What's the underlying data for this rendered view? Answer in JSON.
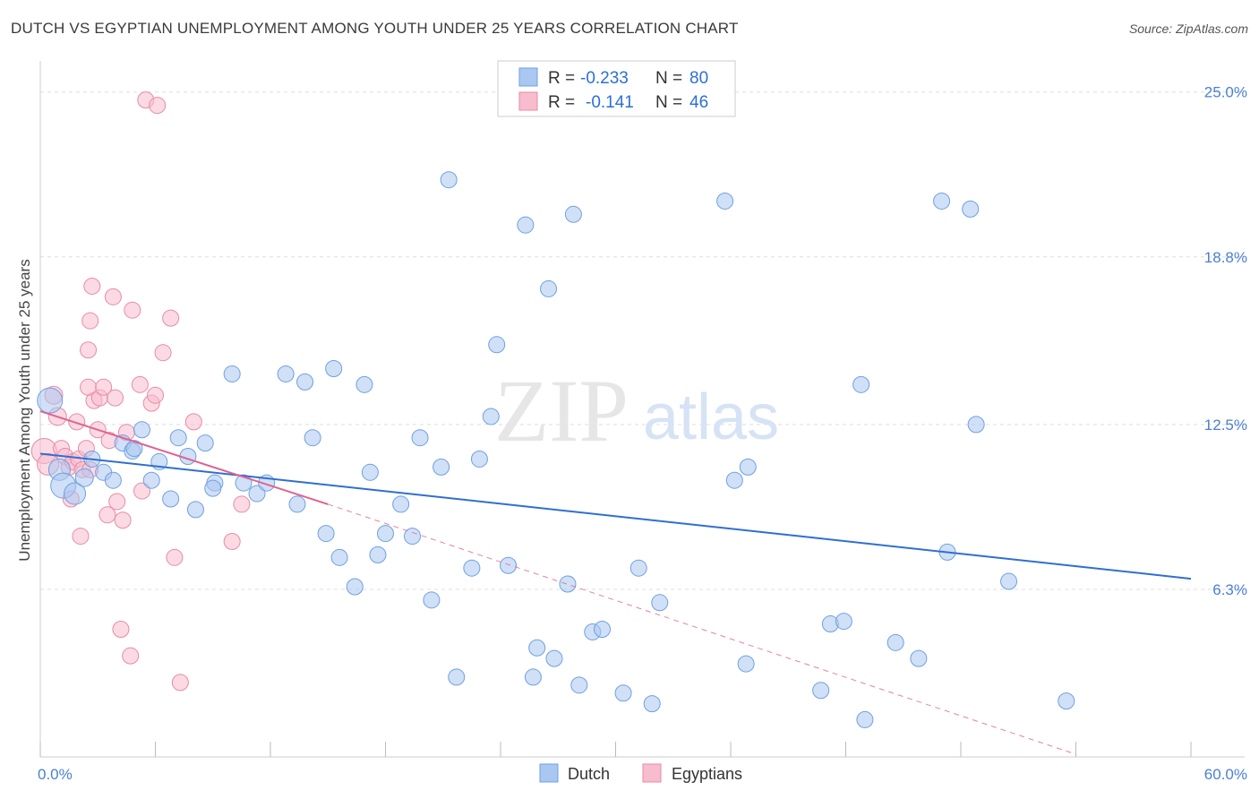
{
  "header": {
    "title": "DUTCH VS EGYPTIAN UNEMPLOYMENT AMONG YOUTH UNDER 25 YEARS CORRELATION CHART",
    "source": "Source: ZipAtlas.com"
  },
  "watermark": {
    "zip": "ZIP",
    "atlas": "atlas"
  },
  "colors": {
    "dutch_fill": "#a9c7f0",
    "dutch_stroke": "#6fa0e0",
    "dutch_line": "#2f6fd0",
    "egypt_fill": "#f7bccd",
    "egypt_stroke": "#e98aa8",
    "egypt_line": "#e0628f",
    "grid": "#dddddd",
    "axis_text": "#4a7fd4"
  },
  "legend": {
    "rows": [
      {
        "r_label": "R =",
        "r_value": "-0.233",
        "n_label": "N =",
        "n_value": "80"
      },
      {
        "r_label": "R =",
        "r_value": "-0.141",
        "n_label": "N =",
        "n_value": "46"
      }
    ]
  },
  "bottom_legend": {
    "dutch": "Dutch",
    "egyptians": "Egyptians"
  },
  "chart_data": {
    "type": "scatter",
    "title": "DUTCH VS EGYPTIAN UNEMPLOYMENT AMONG YOUTH UNDER 25 YEARS CORRELATION CHART",
    "xlabel": "",
    "ylabel": "Unemployment Among Youth under 25 years",
    "xlim": [
      0,
      60
    ],
    "ylim": [
      0,
      25.9
    ],
    "x_tick_labels": [
      "0.0%",
      "60.0%"
    ],
    "y_ticks": [
      6.3,
      12.5,
      18.8,
      25.0
    ],
    "y_tick_labels": [
      "6.3%",
      "12.5%",
      "18.8%",
      "25.0%"
    ],
    "grid": true,
    "legend_position": "top-center",
    "series": [
      {
        "name": "Dutch",
        "r": -0.233,
        "n": 80,
        "trend": {
          "x": [
            0,
            60
          ],
          "y": [
            11.4,
            6.7
          ]
        },
        "points": [
          [
            0.5,
            13.4,
            14
          ],
          [
            1.0,
            10.8,
            12
          ],
          [
            1.2,
            10.2,
            14
          ],
          [
            1.8,
            9.9,
            12
          ],
          [
            2.3,
            10.5,
            10
          ],
          [
            2.7,
            11.2,
            9
          ],
          [
            3.3,
            10.7,
            9
          ],
          [
            3.8,
            10.4,
            9
          ],
          [
            4.3,
            11.8,
            9
          ],
          [
            4.8,
            11.5,
            9
          ],
          [
            5.3,
            12.3,
            9
          ],
          [
            5.8,
            10.4,
            9
          ],
          [
            6.2,
            11.1,
            9
          ],
          [
            6.8,
            9.7,
            9
          ],
          [
            7.2,
            12.0,
            9
          ],
          [
            7.7,
            11.3,
            9
          ],
          [
            8.1,
            9.3,
            9
          ],
          [
            8.6,
            11.8,
            9
          ],
          [
            9.1,
            10.3,
            9
          ],
          [
            10.0,
            14.4,
            9
          ],
          [
            10.6,
            10.3,
            9
          ],
          [
            11.3,
            9.9,
            9
          ],
          [
            11.8,
            10.3,
            9
          ],
          [
            12.8,
            14.4,
            9
          ],
          [
            13.4,
            9.5,
            9
          ],
          [
            13.8,
            14.1,
            9
          ],
          [
            14.2,
            12.0,
            9
          ],
          [
            14.9,
            8.4,
            9
          ],
          [
            15.3,
            14.6,
            9
          ],
          [
            15.6,
            7.5,
            9
          ],
          [
            16.4,
            6.4,
            9
          ],
          [
            16.9,
            14.0,
            9
          ],
          [
            17.2,
            10.7,
            9
          ],
          [
            17.6,
            7.6,
            9
          ],
          [
            18.0,
            8.4,
            9
          ],
          [
            18.8,
            9.5,
            9
          ],
          [
            19.4,
            8.3,
            9
          ],
          [
            19.8,
            12.0,
            9
          ],
          [
            20.4,
            5.9,
            9
          ],
          [
            20.9,
            10.9,
            9
          ],
          [
            21.3,
            21.7,
            9
          ],
          [
            21.7,
            3.0,
            9
          ],
          [
            22.5,
            7.1,
            9
          ],
          [
            22.9,
            11.2,
            9
          ],
          [
            23.5,
            12.8,
            9
          ],
          [
            23.8,
            15.5,
            9
          ],
          [
            24.4,
            7.2,
            9
          ],
          [
            25.3,
            20.0,
            9
          ],
          [
            25.7,
            3.0,
            9
          ],
          [
            25.9,
            4.1,
            9
          ],
          [
            26.5,
            17.6,
            9
          ],
          [
            26.8,
            3.7,
            9
          ],
          [
            27.5,
            6.5,
            9
          ],
          [
            27.8,
            20.4,
            9
          ],
          [
            28.1,
            2.7,
            9
          ],
          [
            28.8,
            4.7,
            9
          ],
          [
            29.3,
            4.8,
            9
          ],
          [
            30.4,
            2.4,
            9
          ],
          [
            31.2,
            7.1,
            9
          ],
          [
            31.9,
            2.0,
            9
          ],
          [
            32.3,
            5.8,
            9
          ],
          [
            35.7,
            20.9,
            9
          ],
          [
            36.2,
            10.4,
            9
          ],
          [
            36.8,
            3.5,
            9
          ],
          [
            36.9,
            10.9,
            9
          ],
          [
            40.7,
            2.5,
            9
          ],
          [
            41.2,
            5.0,
            9
          ],
          [
            41.9,
            5.1,
            9
          ],
          [
            42.8,
            14.0,
            9
          ],
          [
            43.0,
            1.4,
            9
          ],
          [
            44.6,
            4.3,
            9
          ],
          [
            45.8,
            3.7,
            9
          ],
          [
            47.0,
            20.9,
            9
          ],
          [
            47.3,
            7.7,
            9
          ],
          [
            48.5,
            20.6,
            9
          ],
          [
            48.8,
            12.5,
            9
          ],
          [
            50.5,
            6.6,
            9
          ],
          [
            53.5,
            2.1,
            9
          ],
          [
            4.9,
            11.6,
            9
          ],
          [
            9.0,
            10.1,
            9
          ]
        ]
      },
      {
        "name": "Egyptians",
        "r": -0.141,
        "n": 46,
        "trend": {
          "x": [
            0,
            15
          ],
          "y": [
            13.0,
            9.5
          ]
        },
        "trend_dashed": {
          "x": [
            15,
            54
          ],
          "y": [
            9.5,
            0.1
          ]
        },
        "points": [
          [
            0.2,
            11.5,
            14
          ],
          [
            0.4,
            11.0,
            12
          ],
          [
            0.7,
            13.6,
            10
          ],
          [
            0.9,
            12.8,
            10
          ],
          [
            1.1,
            11.6,
            9
          ],
          [
            1.3,
            11.3,
            9
          ],
          [
            1.5,
            10.9,
            9
          ],
          [
            1.7,
            11.1,
            9
          ],
          [
            1.9,
            12.6,
            9
          ],
          [
            2.0,
            11.2,
            9
          ],
          [
            2.2,
            10.8,
            9
          ],
          [
            2.4,
            11.6,
            9
          ],
          [
            2.6,
            10.8,
            9
          ],
          [
            2.8,
            13.4,
            9
          ],
          [
            3.0,
            12.3,
            9
          ],
          [
            1.6,
            9.7,
            9
          ],
          [
            2.1,
            8.3,
            9
          ],
          [
            2.5,
            15.3,
            9
          ],
          [
            2.6,
            16.4,
            9
          ],
          [
            2.5,
            13.9,
            9
          ],
          [
            2.7,
            17.7,
            9
          ],
          [
            3.1,
            13.5,
            9
          ],
          [
            3.3,
            13.9,
            9
          ],
          [
            3.5,
            9.1,
            9
          ],
          [
            3.6,
            11.9,
            9
          ],
          [
            3.8,
            17.3,
            9
          ],
          [
            3.9,
            13.5,
            9
          ],
          [
            4.0,
            9.6,
            9
          ],
          [
            4.2,
            4.8,
            9
          ],
          [
            4.3,
            8.9,
            9
          ],
          [
            4.5,
            12.2,
            9
          ],
          [
            4.7,
            3.8,
            9
          ],
          [
            4.8,
            16.8,
            9
          ],
          [
            5.2,
            14.0,
            9
          ],
          [
            5.3,
            10.0,
            9
          ],
          [
            5.5,
            24.7,
            9
          ],
          [
            5.8,
            13.3,
            9
          ],
          [
            6.0,
            13.6,
            9
          ],
          [
            6.1,
            24.5,
            9
          ],
          [
            6.4,
            15.2,
            9
          ],
          [
            6.8,
            16.5,
            9
          ],
          [
            7.0,
            7.5,
            9
          ],
          [
            7.3,
            2.8,
            9
          ],
          [
            8.0,
            12.6,
            9
          ],
          [
            10.0,
            8.1,
            9
          ],
          [
            10.5,
            9.5,
            9
          ]
        ]
      }
    ]
  }
}
